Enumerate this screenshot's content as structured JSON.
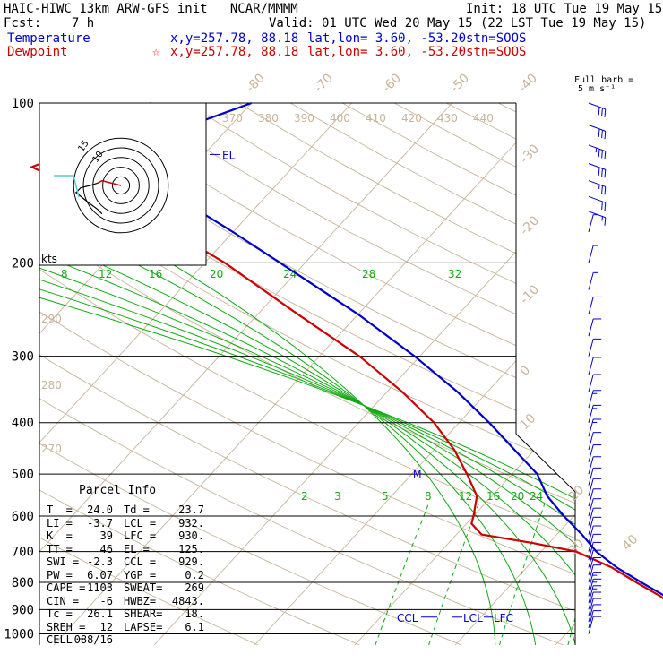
{
  "header": {
    "model": "HAIC-HIWC 13km ARW-GFS init",
    "org": "NCAR/MMMM",
    "init": "Init: 18 UTC Tue 19 May 15",
    "fcst_label": "Fcst:",
    "fcst_value": "7 h",
    "valid": "Valid: 01 UTC Wed 20 May 15 (22 LST Tue 19 May 15)"
  },
  "legend": {
    "temperature": {
      "label": "Temperature",
      "xy": "x,y=257.78, 88.18",
      "latlon_label": "lat,lon=",
      "latlon": "3.60, -53.20",
      "stn": "stn=SOOS",
      "color": "#0000cc"
    },
    "dewpoint": {
      "label": "Dewpoint",
      "marker": "☆",
      "xy": "x,y=257.78, 88.18",
      "latlon_label": "lat,lon=",
      "latlon": "3.60, -53.20",
      "stn": "stn=SOOS",
      "color": "#cc0000"
    }
  },
  "barb_title": [
    "Full barb =",
    "5 m s⁻¹"
  ],
  "hodograph": {
    "unit_label": "kts",
    "ring_labels": [
      "10",
      "15"
    ]
  },
  "sounding_labels": {
    "el": "EL",
    "ccl": "CCL",
    "lcl": "LCL",
    "lfc": "LFC",
    "m": "M"
  },
  "parcel_info": {
    "title": "Parcel Info",
    "rows": [
      [
        "T  =",
        "24.0",
        "Td =",
        "23.7"
      ],
      [
        "LI =",
        "-3.7",
        "LCL =",
        "932."
      ],
      [
        "K  =",
        "39",
        "LFC =",
        "930."
      ],
      [
        "TT =",
        "46",
        "EL =",
        "125."
      ],
      [
        "SWI =",
        "-2.3",
        "CCL =",
        "929."
      ],
      [
        "PW =",
        "6.07",
        "YGP =",
        "0.2"
      ],
      [
        "CAPE =",
        "1103",
        "SWEAT=",
        "269"
      ],
      [
        "CIN =",
        "-6",
        "HWBZ=",
        "4843."
      ],
      [
        "Tc =",
        "26.1",
        "SHEAR=",
        "18."
      ],
      [
        "SREH =",
        "12",
        "LAPSE=",
        "6.1"
      ],
      [
        "CELL =",
        "088/16",
        "",
        ""
      ]
    ]
  },
  "chart_data": {
    "type": "line",
    "title": "",
    "xlabel": "",
    "ylabel": "",
    "pressure_levels": [
      100,
      200,
      300,
      400,
      500,
      600,
      700,
      800,
      900,
      1000
    ],
    "isotherm_labels": [
      "-80",
      "-70",
      "-60",
      "-50",
      "-40",
      "-30",
      "-20",
      "-10",
      "0",
      "10",
      "20",
      "30",
      "40"
    ],
    "theta_labels": [
      "370",
      "380",
      "390",
      "400",
      "410",
      "420",
      "430",
      "440"
    ],
    "theta_left_labels": [
      "290",
      "280",
      "270"
    ],
    "theta_e_labels": [
      "8",
      "12",
      "16",
      "20",
      "24",
      "28",
      "32"
    ],
    "mixing_ratio_labels": [
      "2",
      "3",
      "5",
      "8",
      "12",
      "16",
      "20",
      "24"
    ],
    "series": [
      {
        "name": "Temperature",
        "color": "#0000cc",
        "p": [
          995,
          960,
          930,
          900,
          850,
          800,
          750,
          700,
          650,
          600,
          550,
          500,
          450,
          400,
          350,
          300,
          250,
          200,
          175,
          150,
          138,
          132,
          125,
          120,
          110,
          100
        ],
        "t": [
          24.0,
          22.5,
          21.2,
          19.5,
          16.5,
          12.8,
          9.0,
          5.5,
          2.5,
          -1.0,
          -4.5,
          -7.5,
          -12.0,
          -17.0,
          -23.0,
          -30.5,
          -40.0,
          -52.5,
          -60.0,
          -69.0,
          -74.5,
          -78.0,
          -80.0,
          -77.5,
          -74.0,
          -70.0
        ]
      },
      {
        "name": "Dewpoint",
        "color": "#cc0000",
        "p": [
          995,
          960,
          930,
          900,
          850,
          800,
          750,
          700,
          675,
          650,
          620,
          600,
          550,
          500,
          450,
          400,
          350,
          300,
          250,
          200,
          175,
          150,
          138,
          132,
          125,
          110,
          100
        ],
        "t": [
          23.7,
          22.0,
          20.8,
          19.0,
          16.0,
          12.3,
          8.5,
          3.5,
          -1.5,
          -7.5,
          -9.5,
          -10.0,
          -11.5,
          -14.5,
          -18.0,
          -22.5,
          -28.5,
          -36.0,
          -46.0,
          -58.0,
          -66.0,
          -76.0,
          -83.0,
          -86.0,
          -84.0,
          -83.0,
          -80.0
        ]
      }
    ],
    "hodograph": {
      "u": [
        0,
        -4,
        -8,
        -10,
        -13,
        -17,
        -19,
        -14,
        -10,
        -8
      ],
      "v": [
        0,
        1,
        2,
        1,
        0,
        -1,
        -3,
        -7,
        -10,
        -12
      ]
    },
    "wind_profile": {
      "p": [
        1000,
        975,
        950,
        925,
        900,
        875,
        850,
        825,
        800,
        775,
        750,
        725,
        700,
        675,
        650,
        625,
        600,
        575,
        550,
        525,
        500,
        475,
        450,
        425,
        400,
        375,
        350,
        325,
        300,
        275,
        250,
        225,
        200,
        175,
        160,
        150,
        140,
        130,
        120,
        110,
        100
      ],
      "speed_ms": [
        6,
        6,
        7,
        7,
        7,
        8,
        8,
        8,
        7,
        7,
        7,
        6,
        6,
        6,
        5,
        5,
        5,
        5,
        6,
        6,
        7,
        7,
        7,
        8,
        8,
        8,
        7,
        7,
        6,
        5,
        5,
        4,
        4,
        3,
        8,
        11,
        14,
        16,
        18,
        17,
        15
      ]
    }
  }
}
